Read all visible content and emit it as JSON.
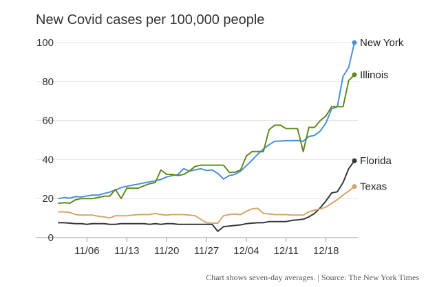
{
  "chart_data": {
    "type": "line",
    "title": "New Covid cases per 100,000 people",
    "xlabel": "",
    "ylabel": "",
    "ylim": [
      0,
      100
    ],
    "yticks": [
      0,
      20,
      40,
      60,
      80,
      100
    ],
    "xrange": [
      "2020-11-01",
      "2020-12-22"
    ],
    "xticks": [
      {
        "date": "2020-11-06",
        "label": "11/06"
      },
      {
        "date": "2020-11-13",
        "label": "11/13"
      },
      {
        "date": "2020-11-20",
        "label": "11/20"
      },
      {
        "date": "2020-11-27",
        "label": "11/27"
      },
      {
        "date": "2020-12-04",
        "label": "12/04"
      },
      {
        "date": "2020-12-11",
        "label": "12/11"
      },
      {
        "date": "2020-12-18",
        "label": "12/18"
      }
    ],
    "grid": true,
    "legend": "end-of-line labels",
    "series": [
      {
        "name": "New York",
        "color": "#4a90d9",
        "points": [
          [
            "2020-11-01",
            20.0
          ],
          [
            "2020-11-02",
            20.5
          ],
          [
            "2020-11-03",
            20.2
          ],
          [
            "2020-11-04",
            21.0
          ],
          [
            "2020-11-05",
            20.8
          ],
          [
            "2020-11-06",
            21.3
          ],
          [
            "2020-11-07",
            21.8
          ],
          [
            "2020-11-08",
            21.8
          ],
          [
            "2020-11-09",
            22.6
          ],
          [
            "2020-11-10",
            23.3
          ],
          [
            "2020-11-11",
            24.4
          ],
          [
            "2020-11-12",
            25.6
          ],
          [
            "2020-11-13",
            26.3
          ],
          [
            "2020-11-14",
            26.9
          ],
          [
            "2020-11-15",
            27.4
          ],
          [
            "2020-11-16",
            28.0
          ],
          [
            "2020-11-17",
            28.6
          ],
          [
            "2020-11-18",
            29.1
          ],
          [
            "2020-11-19",
            29.8
          ],
          [
            "2020-11-20",
            31.1
          ],
          [
            "2020-11-21",
            31.8
          ],
          [
            "2020-11-22",
            32.4
          ],
          [
            "2020-11-23",
            35.3
          ],
          [
            "2020-11-24",
            34.1
          ],
          [
            "2020-11-25",
            34.7
          ],
          [
            "2020-11-26",
            35.3
          ],
          [
            "2020-11-27",
            34.4
          ],
          [
            "2020-11-28",
            34.7
          ],
          [
            "2020-11-29",
            32.9
          ],
          [
            "2020-11-30",
            30.0
          ],
          [
            "2020-12-01",
            31.8
          ],
          [
            "2020-12-02",
            32.4
          ],
          [
            "2020-12-03",
            34.1
          ],
          [
            "2020-12-04",
            36.8
          ],
          [
            "2020-12-05",
            39.7
          ],
          [
            "2020-12-06",
            42.7
          ],
          [
            "2020-12-07",
            45.4
          ],
          [
            "2020-12-08",
            47.6
          ],
          [
            "2020-12-09",
            49.4
          ],
          [
            "2020-12-10",
            49.5
          ],
          [
            "2020-12-11",
            49.7
          ],
          [
            "2020-12-12",
            49.7
          ],
          [
            "2020-12-13",
            49.8
          ],
          [
            "2020-12-14",
            49.4
          ],
          [
            "2020-12-15",
            51.8
          ],
          [
            "2020-12-16",
            52.4
          ],
          [
            "2020-12-17",
            54.7
          ],
          [
            "2020-12-18",
            58.8
          ],
          [
            "2020-12-19",
            66.0
          ],
          [
            "2020-12-20",
            67.1
          ],
          [
            "2020-12-21",
            82.7
          ],
          [
            "2020-12-22",
            87.3
          ],
          [
            "2020-12-23",
            100.0
          ]
        ]
      },
      {
        "name": "Illinois",
        "color": "#5e8a1e",
        "points": [
          [
            "2020-11-01",
            17.6
          ],
          [
            "2020-11-02",
            17.9
          ],
          [
            "2020-11-03",
            17.6
          ],
          [
            "2020-11-04",
            19.4
          ],
          [
            "2020-11-05",
            20.0
          ],
          [
            "2020-11-06",
            20.0
          ],
          [
            "2020-11-07",
            20.0
          ],
          [
            "2020-11-08",
            20.6
          ],
          [
            "2020-11-09",
            21.2
          ],
          [
            "2020-11-10",
            21.2
          ],
          [
            "2020-11-11",
            24.7
          ],
          [
            "2020-11-12",
            20.0
          ],
          [
            "2020-11-13",
            25.3
          ],
          [
            "2020-11-14",
            25.3
          ],
          [
            "2020-11-15",
            25.3
          ],
          [
            "2020-11-16",
            26.5
          ],
          [
            "2020-11-17",
            27.6
          ],
          [
            "2020-11-18",
            28.2
          ],
          [
            "2020-11-19",
            34.7
          ],
          [
            "2020-11-20",
            32.4
          ],
          [
            "2020-11-21",
            32.4
          ],
          [
            "2020-11-22",
            31.8
          ],
          [
            "2020-11-23",
            32.4
          ],
          [
            "2020-11-24",
            34.1
          ],
          [
            "2020-11-25",
            36.5
          ],
          [
            "2020-11-26",
            37.1
          ],
          [
            "2020-11-27",
            37.1
          ],
          [
            "2020-11-28",
            37.1
          ],
          [
            "2020-11-29",
            37.1
          ],
          [
            "2020-11-30",
            37.1
          ],
          [
            "2020-12-01",
            33.5
          ],
          [
            "2020-12-02",
            33.5
          ],
          [
            "2020-12-03",
            34.7
          ],
          [
            "2020-12-04",
            41.8
          ],
          [
            "2020-12-05",
            44.1
          ],
          [
            "2020-12-06",
            44.1
          ],
          [
            "2020-12-07",
            44.1
          ],
          [
            "2020-12-08",
            55.3
          ],
          [
            "2020-12-09",
            57.6
          ],
          [
            "2020-12-10",
            57.6
          ],
          [
            "2020-12-11",
            55.9
          ],
          [
            "2020-12-12",
            55.9
          ],
          [
            "2020-12-13",
            55.9
          ],
          [
            "2020-12-14",
            44.1
          ],
          [
            "2020-12-15",
            56.5
          ],
          [
            "2020-12-16",
            56.5
          ],
          [
            "2020-12-17",
            60.0
          ],
          [
            "2020-12-18",
            62.4
          ],
          [
            "2020-12-19",
            67.1
          ],
          [
            "2020-12-20",
            67.1
          ],
          [
            "2020-12-21",
            67.1
          ],
          [
            "2020-12-22",
            80.6
          ],
          [
            "2020-12-23",
            83.5
          ]
        ]
      },
      {
        "name": "Florida",
        "color": "#333a33",
        "points": [
          [
            "2020-11-01",
            7.6
          ],
          [
            "2020-11-02",
            7.6
          ],
          [
            "2020-11-03",
            7.4
          ],
          [
            "2020-11-04",
            7.1
          ],
          [
            "2020-11-05",
            7.1
          ],
          [
            "2020-11-06",
            6.8
          ],
          [
            "2020-11-07",
            7.1
          ],
          [
            "2020-11-08",
            7.1
          ],
          [
            "2020-11-09",
            7.1
          ],
          [
            "2020-11-10",
            6.8
          ],
          [
            "2020-11-11",
            6.8
          ],
          [
            "2020-11-12",
            7.1
          ],
          [
            "2020-11-13",
            7.1
          ],
          [
            "2020-11-14",
            7.1
          ],
          [
            "2020-11-15",
            7.1
          ],
          [
            "2020-11-16",
            7.1
          ],
          [
            "2020-11-17",
            6.8
          ],
          [
            "2020-11-18",
            7.1
          ],
          [
            "2020-11-19",
            6.8
          ],
          [
            "2020-11-20",
            7.1
          ],
          [
            "2020-11-21",
            7.1
          ],
          [
            "2020-11-22",
            6.8
          ],
          [
            "2020-11-23",
            6.8
          ],
          [
            "2020-11-24",
            6.8
          ],
          [
            "2020-11-25",
            6.8
          ],
          [
            "2020-11-26",
            6.8
          ],
          [
            "2020-11-27",
            6.8
          ],
          [
            "2020-11-28",
            6.8
          ],
          [
            "2020-11-29",
            3.2
          ],
          [
            "2020-11-30",
            5.6
          ],
          [
            "2020-12-01",
            5.9
          ],
          [
            "2020-12-02",
            6.2
          ],
          [
            "2020-12-03",
            6.5
          ],
          [
            "2020-12-04",
            7.1
          ],
          [
            "2020-12-05",
            7.4
          ],
          [
            "2020-12-06",
            7.6
          ],
          [
            "2020-12-07",
            7.6
          ],
          [
            "2020-12-08",
            8.2
          ],
          [
            "2020-12-09",
            8.2
          ],
          [
            "2020-12-10",
            8.2
          ],
          [
            "2020-12-11",
            8.2
          ],
          [
            "2020-12-12",
            8.8
          ],
          [
            "2020-12-13",
            9.1
          ],
          [
            "2020-12-14",
            9.4
          ],
          [
            "2020-12-15",
            10.6
          ],
          [
            "2020-12-16",
            12.4
          ],
          [
            "2020-12-17",
            15.3
          ],
          [
            "2020-12-18",
            18.8
          ],
          [
            "2020-12-19",
            22.9
          ],
          [
            "2020-12-20",
            23.5
          ],
          [
            "2020-12-21",
            28.2
          ],
          [
            "2020-12-22",
            35.3
          ],
          [
            "2020-12-23",
            39.4
          ]
        ]
      },
      {
        "name": "Texas",
        "color": "#d4a56a",
        "points": [
          [
            "2020-11-01",
            13.2
          ],
          [
            "2020-11-02",
            13.2
          ],
          [
            "2020-11-03",
            12.9
          ],
          [
            "2020-11-04",
            11.8
          ],
          [
            "2020-11-05",
            11.5
          ],
          [
            "2020-11-06",
            11.5
          ],
          [
            "2020-11-07",
            11.5
          ],
          [
            "2020-11-08",
            10.9
          ],
          [
            "2020-11-09",
            10.6
          ],
          [
            "2020-11-10",
            10.0
          ],
          [
            "2020-11-11",
            11.2
          ],
          [
            "2020-11-12",
            11.2
          ],
          [
            "2020-11-13",
            11.2
          ],
          [
            "2020-11-14",
            11.5
          ],
          [
            "2020-11-15",
            11.8
          ],
          [
            "2020-11-16",
            11.8
          ],
          [
            "2020-11-17",
            11.8
          ],
          [
            "2020-11-18",
            12.4
          ],
          [
            "2020-11-19",
            11.8
          ],
          [
            "2020-11-20",
            11.5
          ],
          [
            "2020-11-21",
            11.8
          ],
          [
            "2020-11-22",
            11.8
          ],
          [
            "2020-11-23",
            11.8
          ],
          [
            "2020-11-24",
            11.5
          ],
          [
            "2020-11-25",
            11.2
          ],
          [
            "2020-11-26",
            9.4
          ],
          [
            "2020-11-27",
            7.6
          ],
          [
            "2020-11-28",
            7.4
          ],
          [
            "2020-11-29",
            7.4
          ],
          [
            "2020-11-30",
            11.2
          ],
          [
            "2020-12-01",
            11.8
          ],
          [
            "2020-12-02",
            12.1
          ],
          [
            "2020-12-03",
            11.8
          ],
          [
            "2020-12-04",
            13.5
          ],
          [
            "2020-12-05",
            14.7
          ],
          [
            "2020-12-06",
            15.0
          ],
          [
            "2020-12-07",
            12.4
          ],
          [
            "2020-12-08",
            12.1
          ],
          [
            "2020-12-09",
            11.8
          ],
          [
            "2020-12-10",
            11.8
          ],
          [
            "2020-12-11",
            11.8
          ],
          [
            "2020-12-12",
            11.5
          ],
          [
            "2020-12-13",
            11.5
          ],
          [
            "2020-12-14",
            11.5
          ],
          [
            "2020-12-15",
            13.2
          ],
          [
            "2020-12-16",
            14.1
          ],
          [
            "2020-12-17",
            14.7
          ],
          [
            "2020-12-18",
            15.6
          ],
          [
            "2020-12-19",
            17.6
          ],
          [
            "2020-12-20",
            19.4
          ],
          [
            "2020-12-21",
            21.8
          ],
          [
            "2020-12-22",
            23.8
          ],
          [
            "2020-12-23",
            26.2
          ]
        ]
      }
    ],
    "note": "Chart shows seven-day averages. | Source: The New York Times"
  }
}
